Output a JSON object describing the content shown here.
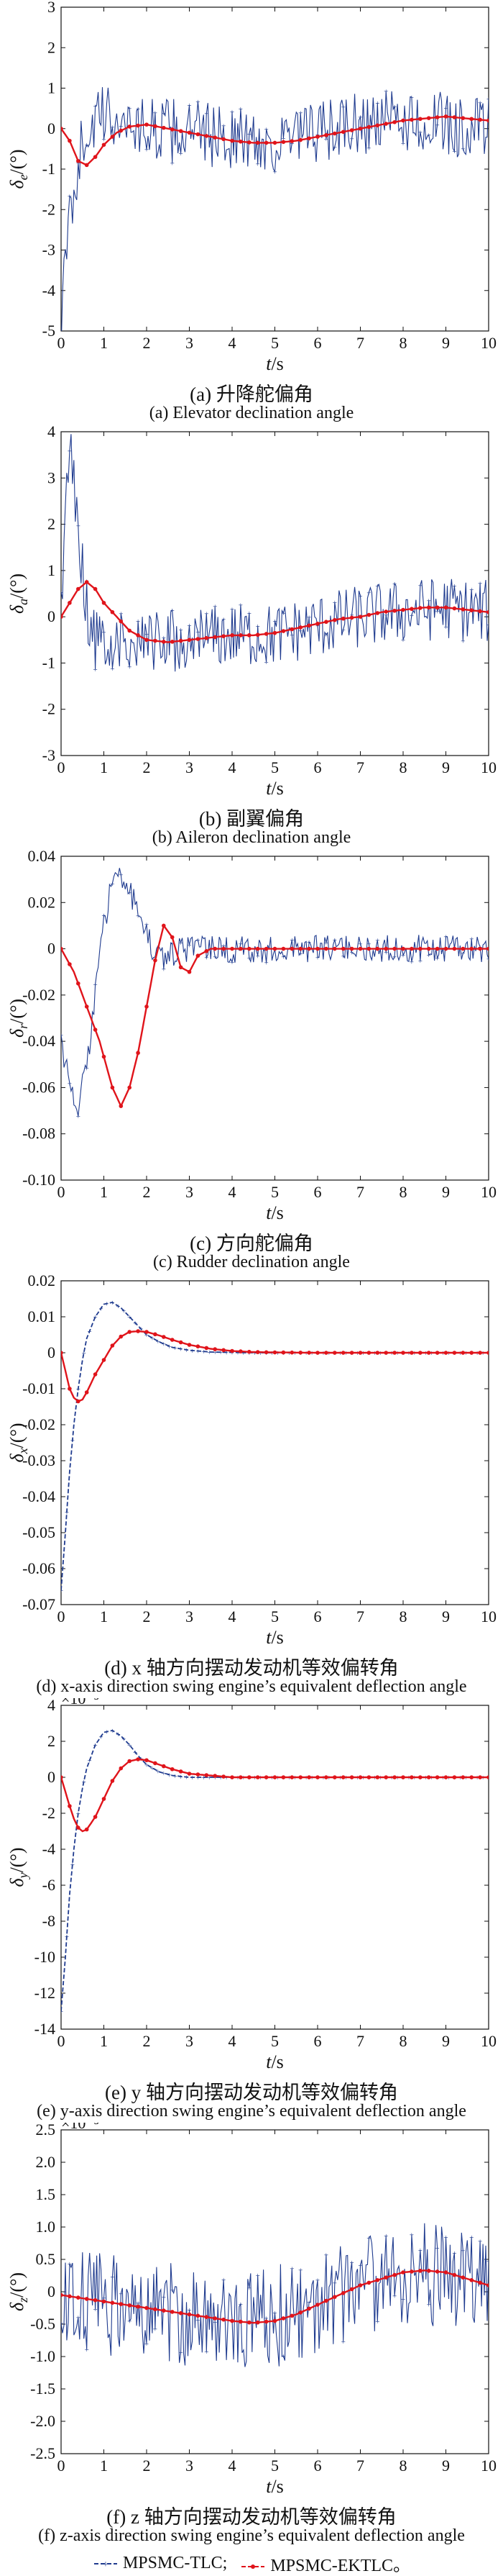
{
  "colors": {
    "tlc": "#1f3b8f",
    "ektlc": "#e0141b"
  },
  "legend": {
    "tlc": "MPSMC-TLC;",
    "ektlc": "MPSMC-EKTLC。"
  },
  "chart_data": [
    {
      "id": "a",
      "type": "line",
      "caption_cn": "(a) 升降舵偏角",
      "caption_en": "(a) Elevator declination angle",
      "ylabel_sym": "δ",
      "ylabel_sub": "e",
      "ylabel_unit": "/(°)",
      "xlabel": "t/s",
      "xlim": [
        0,
        10
      ],
      "ylim": [
        -5,
        3
      ],
      "xticks": [
        "0",
        "1",
        "2",
        "3",
        "4",
        "5",
        "6",
        "7",
        "8",
        "9",
        "10"
      ],
      "yticks": [
        3,
        2,
        1,
        0,
        -1,
        -2,
        -3,
        -4,
        -5
      ],
      "ytick_labels": [
        "3",
        "2",
        "1",
        "0",
        "-1",
        "-2",
        "-3",
        "-4",
        "-5"
      ],
      "exponent": "",
      "series": [
        {
          "key": "tlc",
          "noise": 0.8,
          "x": [
            0,
            0.1,
            0.2,
            0.4,
            0.6,
            1.0,
            1.5,
            2,
            3,
            4,
            5,
            6,
            7,
            8,
            9,
            10
          ],
          "y": [
            -4.8,
            -3.5,
            -2.2,
            -0.8,
            0.0,
            0.3,
            0.2,
            0.0,
            -0.1,
            -0.2,
            -0.4,
            -0.1,
            0.1,
            0.2,
            0.1,
            0.0
          ]
        },
        {
          "key": "ektlc",
          "x": [
            0,
            0.2,
            0.4,
            0.6,
            0.8,
            1.0,
            1.3,
            1.6,
            2,
            2.5,
            3,
            3.5,
            4,
            4.5,
            5,
            5.5,
            6,
            6.5,
            7,
            7.5,
            8,
            8.5,
            9,
            9.5,
            10
          ],
          "y": [
            0,
            -0.3,
            -0.8,
            -0.9,
            -0.7,
            -0.4,
            -0.1,
            0.05,
            0.1,
            0.0,
            -0.1,
            -0.2,
            -0.3,
            -0.35,
            -0.35,
            -0.3,
            -0.2,
            -0.1,
            0.0,
            0.1,
            0.2,
            0.25,
            0.3,
            0.25,
            0.2
          ]
        }
      ]
    },
    {
      "id": "b",
      "type": "line",
      "caption_cn": "(b) 副翼偏角",
      "caption_en": "(b) Aileron declination angle",
      "ylabel_sym": "δ",
      "ylabel_sub": "a",
      "ylabel_unit": "/(°)",
      "xlabel": "t/s",
      "xlim": [
        0,
        10
      ],
      "ylim": [
        -3,
        4
      ],
      "xticks": [
        "0",
        "1",
        "2",
        "3",
        "4",
        "5",
        "6",
        "7",
        "8",
        "9",
        "10"
      ],
      "yticks": [
        4,
        3,
        2,
        1,
        0,
        -1,
        -2,
        -3
      ],
      "ytick_labels": [
        "4",
        "3",
        "2",
        "1",
        "0",
        "-1",
        "-2",
        "-3"
      ],
      "exponent": "",
      "series": [
        {
          "key": "tlc",
          "noise": 0.7,
          "x": [
            0,
            0.1,
            0.2,
            0.3,
            0.5,
            0.7,
            1.0,
            1.5,
            2,
            3,
            4,
            5,
            6,
            7,
            8,
            9,
            10
          ],
          "y": [
            0,
            2.5,
            3.4,
            3.0,
            1.0,
            -0.5,
            -0.6,
            -0.5,
            -0.6,
            -0.5,
            -0.4,
            -0.4,
            -0.2,
            0.0,
            0.1,
            0.2,
            0.1
          ]
        },
        {
          "key": "ektlc",
          "x": [
            0,
            0.2,
            0.4,
            0.6,
            0.8,
            1.0,
            1.3,
            1.6,
            2,
            2.5,
            3,
            3.5,
            4,
            4.5,
            5,
            5.5,
            6,
            6.5,
            7,
            7.5,
            8,
            8.5,
            9,
            9.5,
            10
          ],
          "y": [
            0,
            0.3,
            0.6,
            0.75,
            0.6,
            0.3,
            0.0,
            -0.3,
            -0.5,
            -0.55,
            -0.5,
            -0.45,
            -0.4,
            -0.4,
            -0.35,
            -0.25,
            -0.15,
            -0.05,
            0.0,
            0.1,
            0.15,
            0.2,
            0.2,
            0.15,
            0.1
          ]
        }
      ]
    },
    {
      "id": "c",
      "type": "line",
      "caption_cn": "(c) 方向舵偏角",
      "caption_en": "(c) Rudder declination angle",
      "ylabel_sym": "δ",
      "ylabel_sub": "r",
      "ylabel_unit": "/(°)",
      "xlabel": "t/s",
      "xlim": [
        0,
        10
      ],
      "ylim": [
        -0.1,
        0.04
      ],
      "xticks": [
        "0",
        "1",
        "2",
        "3",
        "4",
        "5",
        "6",
        "7",
        "8",
        "9",
        "10"
      ],
      "yticks": [
        0.04,
        0.02,
        0,
        -0.02,
        -0.04,
        -0.06,
        -0.08,
        -0.1
      ],
      "ytick_labels": [
        "0.04",
        "0.02",
        "0",
        "-0.02",
        "-0.04",
        "-0.06",
        "-0.08",
        "-0.10"
      ],
      "exponent": "",
      "series": [
        {
          "key": "tlc",
          "noise": 0.006,
          "x": [
            0,
            0.2,
            0.4,
            0.6,
            0.8,
            1.0,
            1.2,
            1.4,
            1.6,
            1.8,
            2.0,
            2.3,
            2.6,
            3.0,
            3.5,
            4,
            5,
            6,
            7,
            8,
            9,
            10
          ],
          "y": [
            -0.04,
            -0.06,
            -0.07,
            -0.05,
            -0.02,
            0.01,
            0.03,
            0.032,
            0.025,
            0.015,
            0.005,
            -0.004,
            -0.002,
            0.0,
            0.0,
            0.0,
            0.0,
            0.0,
            0.0,
            0.0,
            0.0,
            0.0
          ]
        },
        {
          "key": "ektlc",
          "x": [
            0,
            0.3,
            0.6,
            0.9,
            1.2,
            1.4,
            1.6,
            1.8,
            2.0,
            2.2,
            2.4,
            2.6,
            2.8,
            3.0,
            3.2,
            3.5,
            4,
            5,
            6,
            7,
            8,
            9,
            10
          ],
          "y": [
            0.0,
            -0.01,
            -0.025,
            -0.04,
            -0.06,
            -0.068,
            -0.06,
            -0.045,
            -0.025,
            -0.005,
            0.01,
            0.005,
            -0.008,
            -0.01,
            -0.003,
            0.0,
            0.0,
            0.0,
            0.0,
            0.0,
            0.0,
            0.0,
            0.0
          ]
        }
      ]
    },
    {
      "id": "d",
      "type": "line",
      "caption_cn": "(d) x 轴方向摆动发动机等效偏转角",
      "caption_en": "(d) x-axis direction swing engine’s equivalent deflection angle",
      "ylabel_sym": "δ",
      "ylabel_sub": "x",
      "ylabel_unit": "/(°)",
      "xlabel": "t/s",
      "xlim": [
        0,
        10
      ],
      "ylim": [
        -0.07,
        0.02
      ],
      "xticks": [
        "0",
        "1",
        "2",
        "3",
        "4",
        "5",
        "6",
        "7",
        "8",
        "9",
        "10"
      ],
      "yticks": [
        0.02,
        0.01,
        0,
        -0.01,
        -0.02,
        -0.03,
        -0.04,
        -0.05,
        -0.06,
        -0.07
      ],
      "ytick_labels": [
        "0.02",
        "0.01",
        "0",
        "-0.01",
        "-0.02",
        "-0.03",
        "-0.04",
        "-0.05",
        "-0.06",
        "-0.07"
      ],
      "exponent": "",
      "series": [
        {
          "key": "tlc",
          "noise": 0,
          "x": [
            0,
            0.1,
            0.2,
            0.3,
            0.4,
            0.5,
            0.6,
            0.8,
            1.0,
            1.2,
            1.4,
            1.6,
            1.8,
            2.0,
            2.3,
            2.6,
            3.0,
            3.5,
            4,
            4.5,
            5,
            6,
            7,
            8,
            9,
            10
          ],
          "y": [
            -0.066,
            -0.05,
            -0.033,
            -0.02,
            -0.01,
            -0.002,
            0.004,
            0.01,
            0.0135,
            0.014,
            0.0125,
            0.01,
            0.0075,
            0.005,
            0.003,
            0.0015,
            0.0007,
            0.0002,
            0.0001,
            0.0,
            0.0,
            0.0,
            0.0,
            0.0,
            0.0,
            0.0
          ]
        },
        {
          "key": "ektlc",
          "x": [
            0,
            0.1,
            0.2,
            0.3,
            0.4,
            0.5,
            0.6,
            0.8,
            1.0,
            1.2,
            1.4,
            1.6,
            1.8,
            2.0,
            2.3,
            2.6,
            3.0,
            3.5,
            4,
            4.5,
            5,
            6,
            7,
            8,
            9,
            10
          ],
          "y": [
            0,
            -0.005,
            -0.01,
            -0.0125,
            -0.0135,
            -0.013,
            -0.011,
            -0.006,
            -0.002,
            0.002,
            0.0045,
            0.0058,
            0.006,
            0.0058,
            0.0048,
            0.0036,
            0.0022,
            0.0011,
            0.0005,
            0.0002,
            0.0001,
            0.0,
            0.0,
            0.0,
            0.0,
            0.0
          ]
        }
      ]
    },
    {
      "id": "e",
      "type": "line",
      "caption_cn": "(e) y 轴方向摆动发动机等效偏转角",
      "caption_en": "(e) y-axis direction swing engine’s equivalent deflection angle",
      "ylabel_sym": "δ",
      "ylabel_sub": "y",
      "ylabel_unit": "/(°)",
      "xlabel": "t/s",
      "xlim": [
        0,
        10
      ],
      "ylim": [
        -14,
        4
      ],
      "xticks": [
        "0",
        "1",
        "2",
        "3",
        "4",
        "5",
        "6",
        "7",
        "8",
        "9",
        "10"
      ],
      "yticks": [
        4,
        2,
        0,
        -2,
        -4,
        -6,
        -8,
        -10,
        -12,
        -14
      ],
      "ytick_labels": [
        "4",
        "2",
        "0",
        "-2",
        "-4",
        "-6",
        "-8",
        "-10",
        "-12",
        "-14"
      ],
      "exponent": "×10⁻³",
      "series": [
        {
          "key": "tlc",
          "noise": 0,
          "x": [
            0,
            0.1,
            0.2,
            0.3,
            0.4,
            0.5,
            0.6,
            0.8,
            1.0,
            1.2,
            1.4,
            1.6,
            1.8,
            2.0,
            2.3,
            2.6,
            3.0,
            3.5,
            4,
            5,
            6,
            7,
            8,
            9,
            10
          ],
          "y": [
            -13.0,
            -10.0,
            -6.5,
            -4.0,
            -2.0,
            -0.6,
            0.5,
            1.8,
            2.5,
            2.6,
            2.3,
            1.8,
            1.2,
            0.7,
            0.3,
            0.1,
            0.0,
            0.0,
            0.0,
            0.0,
            0.0,
            0.0,
            0.0,
            0.0,
            0.0
          ]
        },
        {
          "key": "ektlc",
          "x": [
            0,
            0.1,
            0.2,
            0.3,
            0.4,
            0.5,
            0.6,
            0.8,
            1.0,
            1.2,
            1.4,
            1.6,
            1.8,
            2.0,
            2.3,
            2.6,
            3.0,
            3.5,
            4,
            5,
            6,
            7,
            8,
            9,
            10
          ],
          "y": [
            0,
            -0.8,
            -1.6,
            -2.3,
            -2.8,
            -3.0,
            -2.9,
            -2.2,
            -1.2,
            -0.2,
            0.5,
            0.9,
            1.0,
            0.95,
            0.7,
            0.45,
            0.2,
            0.1,
            0.0,
            0.0,
            0.0,
            0.0,
            0.0,
            0.0,
            0.0
          ]
        }
      ]
    },
    {
      "id": "f",
      "type": "line",
      "caption_cn": "(f) z 轴方向摆动发动机等效偏转角",
      "caption_en": "(f) z-axis direction swing engine’s equivalent deflection angle",
      "ylabel_sym": "δ",
      "ylabel_sub": "z",
      "ylabel_unit": "/(°)",
      "xlabel": "t/s",
      "xlim": [
        0,
        10
      ],
      "ylim": [
        -2.5,
        2.5
      ],
      "xticks": [
        "0",
        "1",
        "2",
        "3",
        "4",
        "5",
        "6",
        "7",
        "8",
        "9",
        "10"
      ],
      "yticks": [
        2.5,
        2.0,
        1.5,
        1.0,
        0.5,
        0,
        -0.5,
        -1.0,
        -1.5,
        -2.0,
        -2.5
      ],
      "ytick_labels": [
        "2.5",
        "2.0",
        "1.5",
        "1.0",
        "0.5",
        "0",
        "-0.5",
        "-1.0",
        "-1.5",
        "-2.0",
        "-2.5"
      ],
      "exponent": "×10⁻³",
      "series": [
        {
          "key": "tlc",
          "noise": 0.8,
          "x": [
            0,
            1,
            2,
            3,
            4,
            5,
            6,
            7,
            8,
            9,
            10
          ],
          "y": [
            -0.1,
            -0.2,
            -0.3,
            -0.35,
            -0.4,
            -0.4,
            -0.2,
            0.1,
            0.3,
            0.25,
            0.1
          ]
        },
        {
          "key": "ektlc",
          "x": [
            0,
            0.5,
            1,
            1.5,
            2,
            2.5,
            3,
            3.5,
            4,
            4.5,
            5,
            5.5,
            6,
            6.5,
            7,
            7.5,
            8,
            8.5,
            9,
            9.5,
            10
          ],
          "y": [
            -0.05,
            -0.1,
            -0.15,
            -0.2,
            -0.25,
            -0.3,
            -0.35,
            -0.4,
            -0.45,
            -0.48,
            -0.45,
            -0.35,
            -0.2,
            -0.05,
            0.1,
            0.2,
            0.3,
            0.33,
            0.3,
            0.2,
            0.1
          ]
        }
      ]
    }
  ]
}
